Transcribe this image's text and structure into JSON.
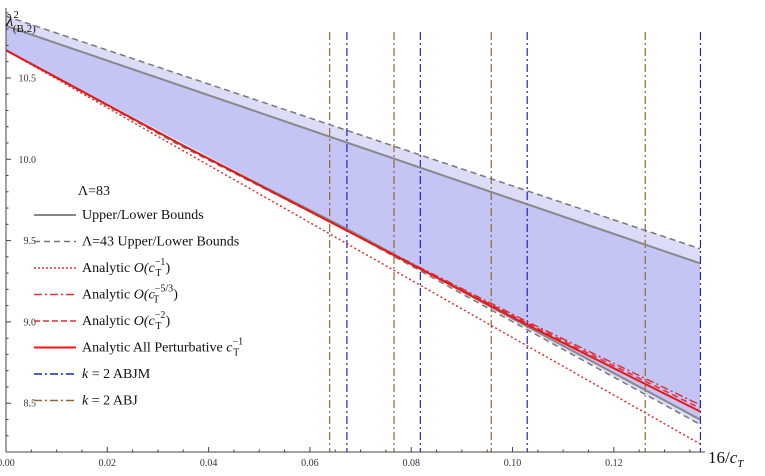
{
  "chart_data": {
    "type": "line",
    "title": "",
    "xlabel": "16/c_T",
    "ylabel": "λ²(B,2)",
    "xlim": [
      0,
      0.138
    ],
    "ylim": [
      8.2,
      10.93
    ],
    "x_ticks": [
      "0.00",
      "0.02",
      "0.04",
      "0.06",
      "0.08",
      "0.10",
      "0.12"
    ],
    "x_tick_values": [
      0,
      0.02,
      0.04,
      0.06,
      0.08,
      0.1,
      0.12
    ],
    "y_ticks": [
      "8.5",
      "9.0",
      "9.5",
      "10.0",
      "10.5"
    ],
    "y_tick_values": [
      8.5,
      9.0,
      9.5,
      10.0,
      10.5
    ],
    "shaded_regions": [
      {
        "name": "Λ=43 band",
        "color": "#dcdcf8",
        "upper": [
          [
            0,
            10.88
          ],
          [
            0.137,
            9.45
          ]
        ],
        "lower": [
          [
            0,
            10.67
          ],
          [
            0.068,
            9.56
          ],
          [
            0.137,
            8.37
          ]
        ]
      },
      {
        "name": "Λ=83 band",
        "color": "#c4c4f5",
        "upper": [
          [
            0,
            10.82
          ],
          [
            0.137,
            9.36
          ]
        ],
        "lower": [
          [
            0,
            10.67
          ],
          [
            0.068,
            9.56
          ],
          [
            0.137,
            8.4
          ]
        ]
      }
    ],
    "series": [
      {
        "name": "Upper/Lower Bounds",
        "color": "#888888",
        "style": "solid",
        "width": 2,
        "x": [
          0,
          0.137
        ],
        "y": [
          10.82,
          9.36
        ]
      },
      {
        "name": "Upper/Lower Bounds",
        "color": "#888888",
        "style": "solid",
        "width": 2,
        "x": [
          0,
          0.034,
          0.068,
          0.103,
          0.137
        ],
        "y": [
          10.67,
          10.1,
          9.56,
          8.97,
          8.4
        ]
      },
      {
        "name": "Λ=43 Upper/Lower Bounds",
        "color": "#777777",
        "style": "dashed",
        "width": 1.5,
        "x": [
          0,
          0.137
        ],
        "y": [
          10.88,
          9.45
        ]
      },
      {
        "name": "Λ=43 Upper/Lower Bounds",
        "color": "#777777",
        "style": "dashed",
        "width": 1.5,
        "x": [
          0,
          0.034,
          0.068,
          0.103,
          0.137
        ],
        "y": [
          10.67,
          10.09,
          9.55,
          8.95,
          8.37
        ]
      },
      {
        "name": "Analytic O(c_T^-1)",
        "color": "#e03030",
        "style": "dotted",
        "width": 1.5,
        "x": [
          0,
          0.137
        ],
        "y": [
          10.67,
          8.25
        ]
      },
      {
        "name": "Analytic O(c_T^-5/3)",
        "color": "#e03030",
        "style": "dashdot",
        "width": 1.5,
        "x": [
          0,
          0.034,
          0.068,
          0.103,
          0.137
        ],
        "y": [
          10.67,
          10.1,
          9.55,
          9.0,
          8.49
        ]
      },
      {
        "name": "Analytic O(c_T^-2)",
        "color": "#e03030",
        "style": "dashed",
        "width": 1.5,
        "x": [
          0,
          0.034,
          0.068,
          0.103,
          0.137
        ],
        "y": [
          10.67,
          10.1,
          9.55,
          8.99,
          8.47
        ]
      },
      {
        "name": "Analytic All Perturbative c_T^-1",
        "color": "#e81818",
        "style": "solid",
        "width": 2,
        "x": [
          0,
          0.034,
          0.068,
          0.103,
          0.137
        ],
        "y": [
          10.67,
          10.1,
          9.55,
          8.98,
          8.45
        ]
      }
    ],
    "vertical_lines": [
      {
        "name": "k = 2 ABJM",
        "color": "#2222cc",
        "style": "dashdot",
        "x": [
          0.0673,
          0.0818,
          0.1029,
          0.1371
        ]
      },
      {
        "name": "k = 2 ABJ",
        "color": "#996633",
        "style": "dashdot",
        "x": [
          0.0639,
          0.0766,
          0.0958,
          0.1262
        ]
      }
    ],
    "legend": {
      "placement": "left-middle",
      "heading": "Λ=83",
      "items": [
        {
          "label_parts": [
            "Upper/Lower Bounds"
          ],
          "color": "#888888",
          "dash": "",
          "width": 2
        },
        {
          "label_parts": [
            "Λ=43 Upper/Lower Bounds"
          ],
          "color": "#777777",
          "dash": "6,4",
          "width": 1.5
        },
        {
          "label_parts": [
            "Analytic ",
            "O(c",
            "T",
            "−1",
            ")"
          ],
          "color": "#e03030",
          "dash": "2,2",
          "width": 1.5
        },
        {
          "label_parts": [
            "Analytic ",
            "O(c",
            "T",
            "−5/3",
            ")"
          ],
          "color": "#e03030",
          "dash": "8,3,2,3",
          "width": 1.5
        },
        {
          "label_parts": [
            "Analytic ",
            "O(c",
            "T",
            "−2",
            ")"
          ],
          "color": "#e03030",
          "dash": "6,3",
          "width": 1.5
        },
        {
          "label_parts": [
            "Analytic All Perturbative ",
            "c",
            "T",
            "−1",
            ""
          ],
          "color": "#e81818",
          "dash": "",
          "width": 2
        },
        {
          "label_parts": [
            "k",
            " = 2 ABJM"
          ],
          "color": "#2222cc",
          "dash": "8,3,2,3",
          "width": 1.5
        },
        {
          "label_parts": [
            "k",
            " = 2 ABJ"
          ],
          "color": "#996633",
          "dash": "8,3,2,3",
          "width": 1.5
        }
      ]
    }
  }
}
